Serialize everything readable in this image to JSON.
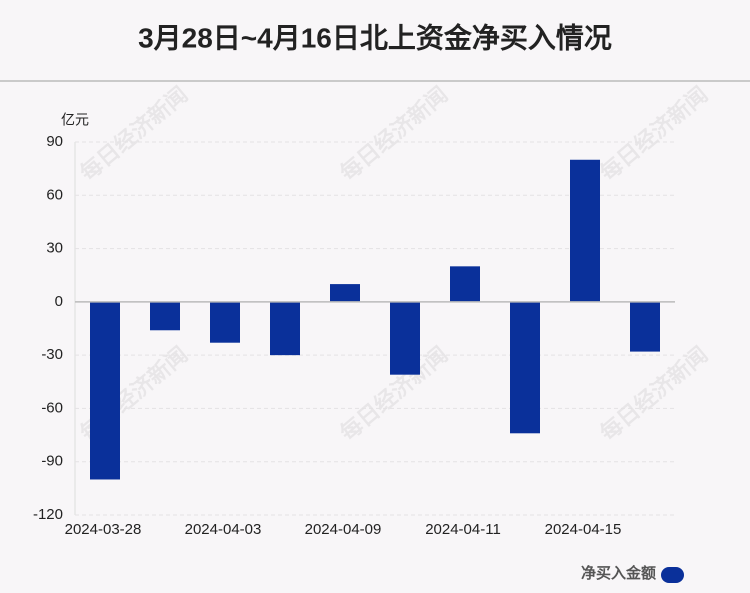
{
  "chart_data": {
    "type": "bar",
    "title": "3月28日~4月16日北上资金净买入情况",
    "y_unit": "亿元",
    "watermark": "每日经济新闻",
    "categories": [
      "2024-03-28",
      null,
      "2024-04-03",
      null,
      "2024-04-09",
      null,
      "2024-04-11",
      null,
      "2024-04-15",
      null
    ],
    "series": [
      {
        "name": "净买入金额",
        "color": "#0a309a",
        "values": [
          -100,
          -16,
          -23,
          -30,
          10,
          -41,
          20,
          -74,
          80,
          -28
        ]
      }
    ],
    "ylim": [
      -120,
      90
    ],
    "yticks": [
      -120,
      -90,
      -60,
      -30,
      0,
      30,
      60,
      90
    ],
    "grid": true,
    "legend": "bottom-right"
  }
}
